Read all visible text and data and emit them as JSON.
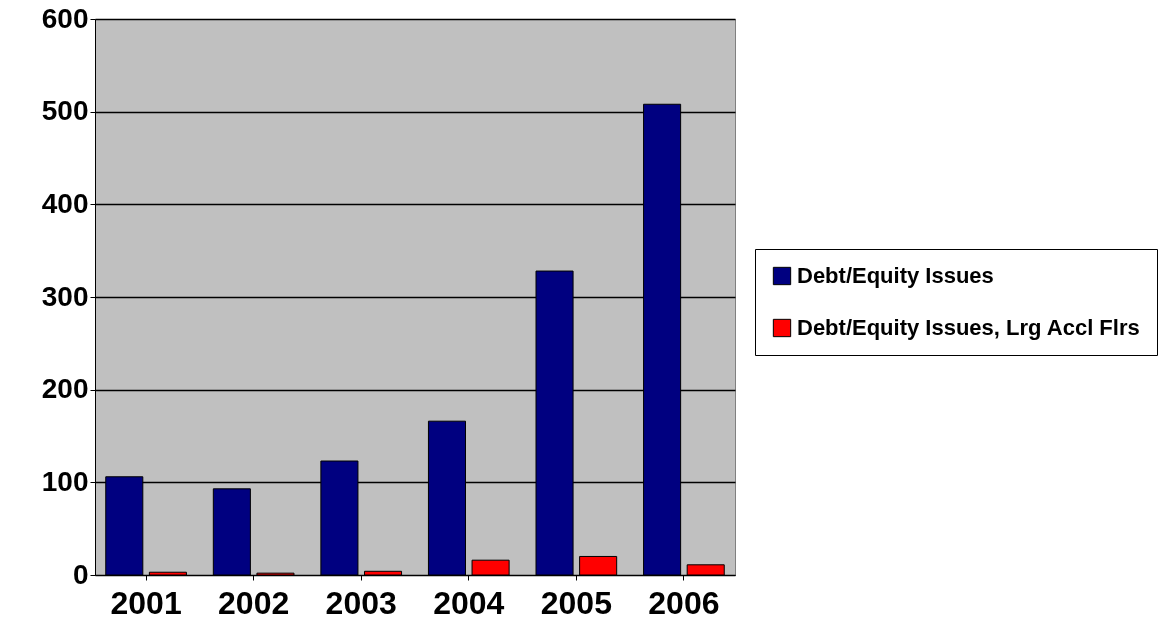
{
  "chart_data": {
    "type": "bar",
    "categories": [
      "2001",
      "2002",
      "2003",
      "2004",
      "2005",
      "2006"
    ],
    "series": [
      {
        "name": "Debt/Equity Issues",
        "color": "#000080",
        "values": [
          106,
          93,
          123,
          166,
          328,
          508
        ]
      },
      {
        "name": "Debt/Equity Issues, Lrg Accl Flrs",
        "color": "#ff0000",
        "values": [
          3,
          2,
          4,
          16,
          20,
          11
        ]
      }
    ],
    "ylim": [
      0,
      600
    ],
    "yticks": [
      0,
      100,
      200,
      300,
      400,
      500,
      600
    ],
    "grid": "y",
    "legend": "right"
  }
}
